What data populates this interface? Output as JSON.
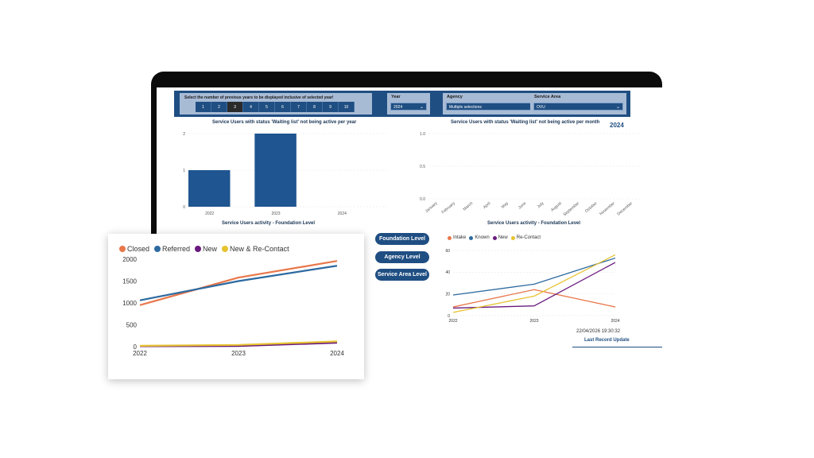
{
  "slicers": {
    "years_title": "Select the number of previous years to be displayed inclusive of selected year!",
    "year_buttons": [
      "1",
      "2",
      "3",
      "4",
      "5",
      "6",
      "7",
      "8",
      "9",
      "10"
    ],
    "active_year_index": 2,
    "year_label": "Year",
    "year_value": "2024",
    "agency_label": "Agency",
    "agency_value": "Multiple selections",
    "area_label": "Service Area",
    "area_value": "OVU"
  },
  "year_chart": {
    "title": "Service Users with status 'Waiting list' not being active per year",
    "chart_data": {
      "type": "bar",
      "categories": [
        "2022",
        "2023",
        "2024"
      ],
      "values": [
        1,
        2,
        0
      ],
      "ylim": [
        0,
        2
      ],
      "yticks": [
        "0",
        "1",
        "2"
      ],
      "color": "#1f5590"
    }
  },
  "month_chart": {
    "title": "Service Users with status 'Waiting list' not being active per month",
    "year_badge": "2024",
    "chart_data": {
      "type": "bar",
      "categories": [
        "January",
        "February",
        "March",
        "April",
        "May",
        "June",
        "July",
        "August",
        "September",
        "October",
        "November",
        "December"
      ],
      "values": [
        0,
        0,
        0,
        0,
        0,
        0,
        0,
        0,
        0,
        0,
        0,
        0
      ],
      "ylim": [
        0,
        1
      ],
      "yticks": [
        "0.0",
        "0.5",
        "1.0"
      ]
    }
  },
  "activity_left_title": "Service Users activity - Foundation Level",
  "activity_right_title": "Service Users activity - Foundation Level",
  "level_buttons": {
    "foundation": "Foundation Level",
    "agency": "Agency Level",
    "area": "Service Area Level"
  },
  "right_chart": {
    "chart_data": {
      "type": "line",
      "x": [
        "2022",
        "2023",
        "2024"
      ],
      "ylim": [
        0,
        60
      ],
      "yticks": [
        "0",
        "20",
        "40",
        "60"
      ],
      "series": [
        {
          "name": "Intake",
          "color": "#e8774a",
          "values": [
            8,
            24,
            8
          ]
        },
        {
          "name": "Known",
          "color": "#2d6aa0",
          "values": [
            19,
            29,
            53
          ]
        },
        {
          "name": "New",
          "color": "#6a1a7e",
          "values": [
            7,
            9,
            49
          ]
        },
        {
          "name": "Re-Contact",
          "color": "#e6c230",
          "values": [
            3,
            18,
            56
          ]
        }
      ]
    }
  },
  "last_update": {
    "timestamp": "22/04/2026 19:30:32",
    "label": "Last Record Update"
  },
  "float_chart": {
    "chart_data": {
      "type": "line",
      "x": [
        "2022",
        "2023",
        "2024"
      ],
      "ylim": [
        0,
        2000
      ],
      "yticks": [
        "0",
        "500",
        "1000",
        "1500",
        "2000"
      ],
      "series": [
        {
          "name": "Closed",
          "color": "#e8774a",
          "values": [
            950,
            1580,
            1960
          ]
        },
        {
          "name": "Referred",
          "color": "#2d6aa0",
          "values": [
            1060,
            1500,
            1850
          ]
        },
        {
          "name": "New",
          "color": "#6a1a7e",
          "values": [
            10,
            15,
            90
          ]
        },
        {
          "name": "New & Re-Contact",
          "color": "#e6c230",
          "values": [
            20,
            40,
            120
          ]
        }
      ]
    }
  }
}
